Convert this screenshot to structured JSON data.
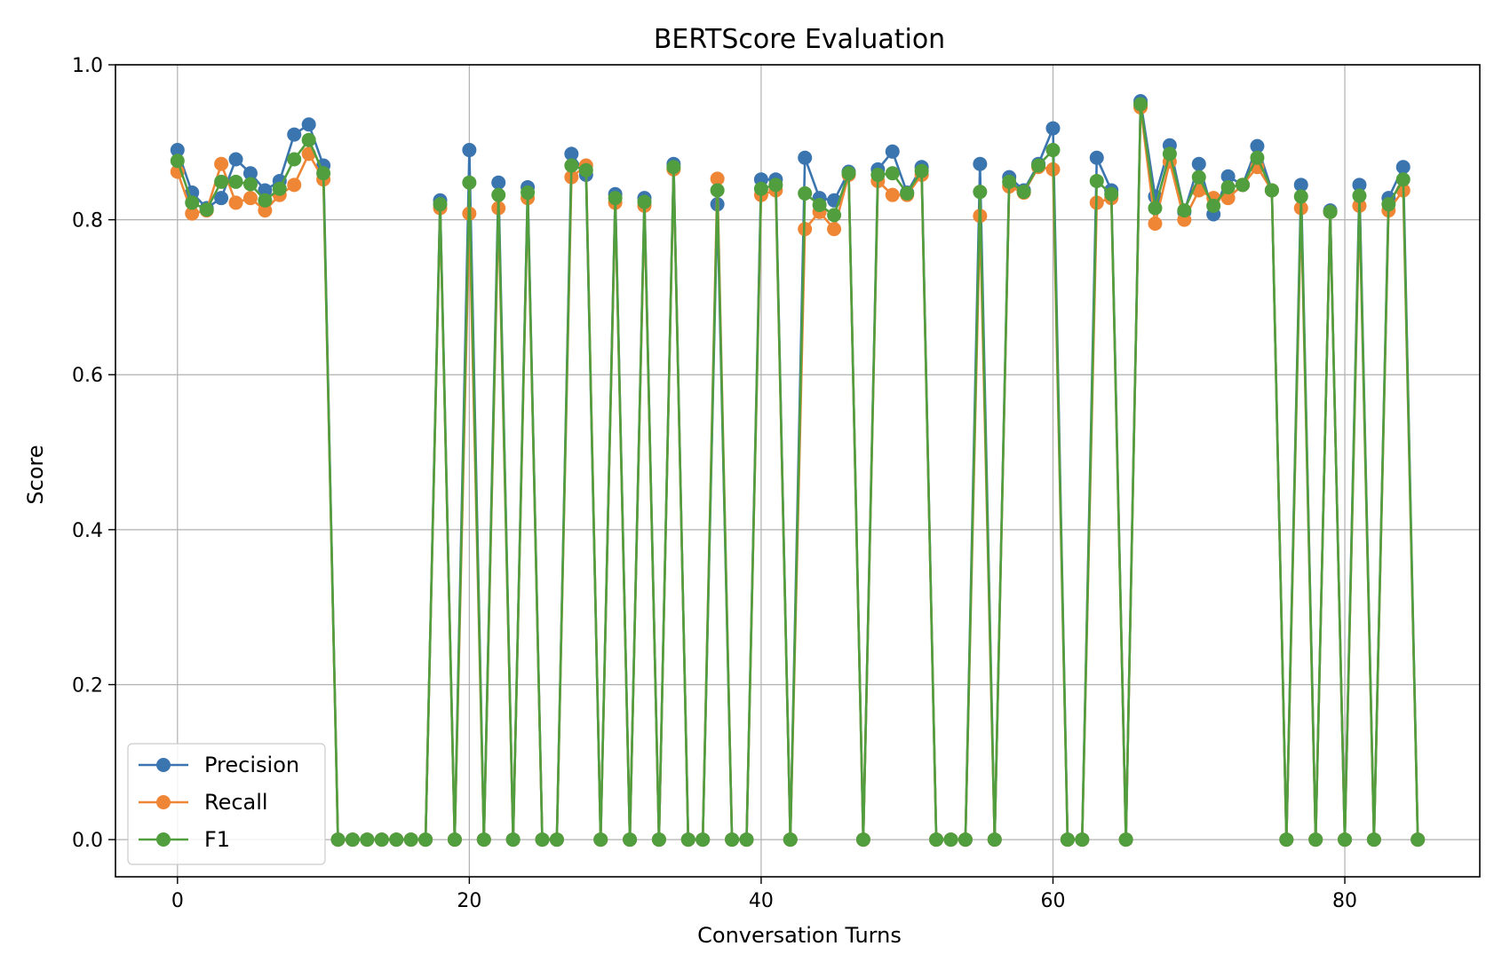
{
  "chart_data": {
    "type": "line",
    "title": "BERTScore Evaluation",
    "xlabel": "Conversation Turns",
    "ylabel": "Score",
    "xlim": [
      -4.25,
      89.25
    ],
    "ylim": [
      -0.048,
      1.0
    ],
    "xticks": [
      0,
      20,
      40,
      60,
      80
    ],
    "xtick_labels": [
      "0",
      "20",
      "40",
      "60",
      "80"
    ],
    "yticks": [
      0.0,
      0.2,
      0.4,
      0.6,
      0.8,
      1.0
    ],
    "ytick_labels": [
      "0.0",
      "0.2",
      "0.4",
      "0.6",
      "0.8",
      "1.0"
    ],
    "grid": true,
    "legend_position": "lower-left",
    "marker": "circle",
    "x": [
      0,
      1,
      2,
      3,
      4,
      5,
      6,
      7,
      8,
      9,
      10,
      11,
      12,
      13,
      14,
      15,
      16,
      17,
      18,
      19,
      20,
      21,
      22,
      23,
      24,
      25,
      26,
      27,
      28,
      29,
      30,
      31,
      32,
      33,
      34,
      35,
      36,
      37,
      38,
      39,
      40,
      41,
      42,
      43,
      44,
      45,
      46,
      47,
      48,
      49,
      50,
      51,
      52,
      53,
      54,
      55,
      56,
      57,
      58,
      59,
      60,
      61,
      62,
      63,
      64,
      65,
      66,
      67,
      68,
      69,
      70,
      71,
      72,
      73,
      74,
      75,
      76,
      77,
      78,
      79,
      80,
      81,
      82,
      83,
      84,
      85
    ],
    "series": [
      {
        "name": "Precision",
        "color": "#3b75af",
        "values": [
          0.89,
          0.835,
          0.815,
          0.828,
          0.878,
          0.86,
          0.838,
          0.85,
          0.91,
          0.923,
          0.87,
          0,
          0,
          0,
          0,
          0,
          0,
          0,
          0.825,
          0,
          0.89,
          0,
          0.848,
          0,
          0.842,
          0,
          0,
          0.885,
          0.858,
          0,
          0.833,
          0,
          0.828,
          0,
          0.872,
          0,
          0,
          0.82,
          0,
          0,
          0.852,
          0.852,
          0,
          0.88,
          0.828,
          0.825,
          0.862,
          0,
          0.865,
          0.888,
          0.835,
          0.868,
          0,
          0,
          0,
          0.872,
          0,
          0.855,
          0.838,
          0.872,
          0.918,
          0,
          0,
          0.88,
          0.838,
          0,
          0.953,
          0.83,
          0.896,
          0.81,
          0.872,
          0.807,
          0.856,
          0.845,
          0.895,
          0.838,
          0,
          0.845,
          0,
          0.812,
          0,
          0.845,
          0,
          0.828,
          0.868,
          0
        ]
      },
      {
        "name": "Recall",
        "color": "#ef8636",
        "values": [
          0.862,
          0.808,
          0.812,
          0.872,
          0.822,
          0.828,
          0.812,
          0.832,
          0.845,
          0.885,
          0.852,
          0,
          0,
          0,
          0,
          0,
          0,
          0,
          0.815,
          0,
          0.808,
          0,
          0.815,
          0,
          0.828,
          0,
          0,
          0.855,
          0.87,
          0,
          0.822,
          0,
          0.818,
          0,
          0.865,
          0,
          0,
          0.853,
          0,
          0,
          0.832,
          0.838,
          0,
          0.788,
          0.81,
          0.788,
          0.858,
          0,
          0.85,
          0.832,
          0.832,
          0.858,
          0,
          0,
          0,
          0.805,
          0,
          0.843,
          0.835,
          0.868,
          0.865,
          0,
          0,
          0.822,
          0.828,
          0,
          0.945,
          0.795,
          0.875,
          0.8,
          0.838,
          0.828,
          0.828,
          0.845,
          0.868,
          0.838,
          0,
          0.815,
          0,
          0.81,
          0,
          0.818,
          0,
          0.812,
          0.838,
          0
        ]
      },
      {
        "name": "F1",
        "color": "#519e3e",
        "values": [
          0.876,
          0.822,
          0.813,
          0.849,
          0.849,
          0.846,
          0.825,
          0.84,
          0.878,
          0.903,
          0.86,
          0,
          0,
          0,
          0,
          0,
          0,
          0,
          0.82,
          0,
          0.848,
          0,
          0.832,
          0,
          0.835,
          0,
          0,
          0.87,
          0.864,
          0,
          0.828,
          0,
          0.823,
          0,
          0.868,
          0,
          0,
          0.838,
          0,
          0,
          0.84,
          0.845,
          0,
          0.834,
          0.819,
          0.806,
          0.86,
          0,
          0.858,
          0.86,
          0.834,
          0.863,
          0,
          0,
          0,
          0.836,
          0,
          0.849,
          0.836,
          0.87,
          0.89,
          0,
          0,
          0.85,
          0.833,
          0,
          0.949,
          0.815,
          0.885,
          0.812,
          0.855,
          0.818,
          0.842,
          0.845,
          0.88,
          0.838,
          0,
          0.83,
          0,
          0.81,
          0,
          0.831,
          0,
          0.82,
          0.852,
          0
        ]
      }
    ]
  }
}
